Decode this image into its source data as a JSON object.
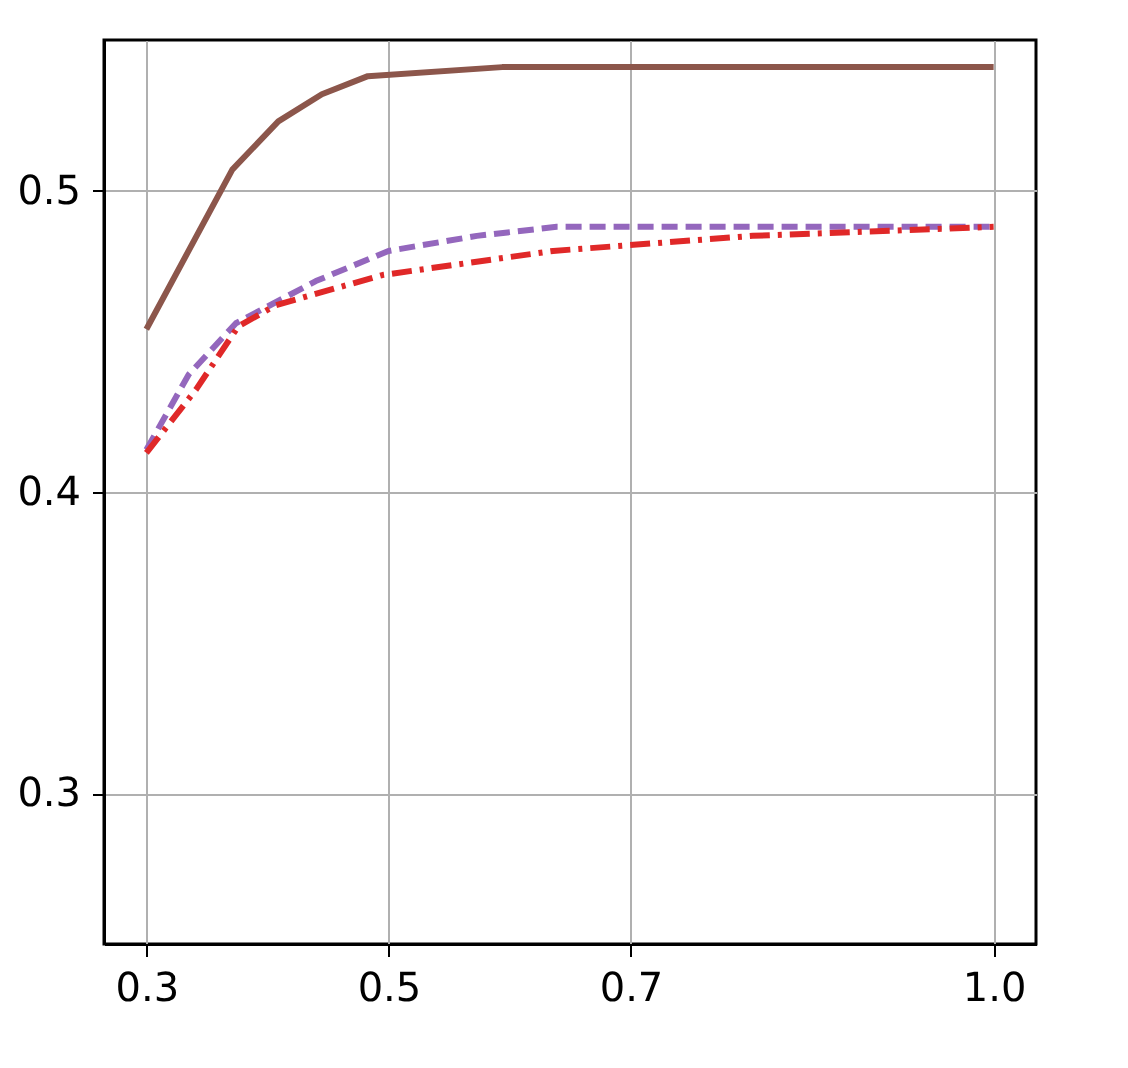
{
  "chart_data": {
    "type": "line",
    "xlim": [
      0.265,
      1.035
    ],
    "ylim": [
      0.25,
      0.55
    ],
    "xticks": [
      0.3,
      0.5,
      0.7,
      {
        "value": 1.0,
        "label": "1.0"
      }
    ],
    "yticks": [
      0.3,
      0.4,
      0.5
    ],
    "grid": true,
    "marker": "none",
    "series": [
      {
        "color": "#8c564b",
        "line_style": "solid",
        "x": [
          0.3,
          0.371,
          0.409,
          0.445,
          0.483,
          0.594,
          1.0
        ],
        "values": [
          0.454,
          0.507,
          0.523,
          0.532,
          0.538,
          0.541,
          0.541
        ]
      },
      {
        "color": "#9467bd",
        "line_style": "dashed",
        "x": [
          0.3,
          0.335,
          0.374,
          0.44,
          0.5,
          0.573,
          0.639,
          1.0
        ],
        "values": [
          0.414,
          0.439,
          0.456,
          0.47,
          0.48,
          0.485,
          0.488,
          0.488
        ]
      },
      {
        "color": "#e02828",
        "line_style": "dashdot",
        "x": [
          0.3,
          0.341,
          0.376,
          0.407,
          0.495,
          0.636,
          0.801,
          1.0
        ],
        "values": [
          0.413,
          0.434,
          0.455,
          0.462,
          0.472,
          0.48,
          0.485,
          0.488
        ]
      }
    ]
  }
}
